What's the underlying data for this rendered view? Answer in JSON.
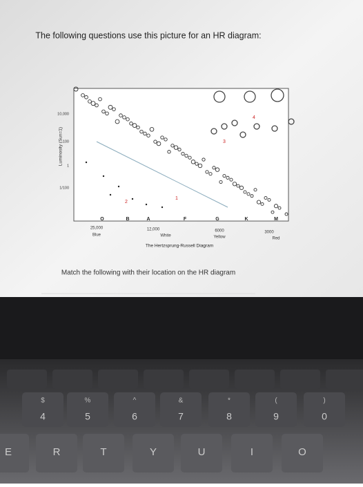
{
  "header": {
    "title": "The following questions use this picture for an HR diagram:"
  },
  "diagram": {
    "y_axis_label": "Luminosity (Sun=1)",
    "y_ticks": [
      "10,000",
      "100",
      "1",
      "1/100"
    ],
    "spectral_classes": [
      "O",
      "B",
      "A",
      "F",
      "G",
      "K",
      "M"
    ],
    "temperatures": [
      "25,000",
      "12,000",
      "6000",
      "3000"
    ],
    "colors": [
      "Blue",
      "White",
      "Yellow",
      "Red"
    ],
    "caption": "The Hertzsprung-Russell Diagram",
    "markers": [
      "1",
      "2",
      "3",
      "4"
    ]
  },
  "prompt": "Match the following with their location on the HR diagram",
  "keyboard": {
    "number_row": [
      {
        "symbol": "$",
        "digit": "4"
      },
      {
        "symbol": "%",
        "digit": "5"
      },
      {
        "symbol": "^",
        "digit": "6"
      },
      {
        "symbol": "&",
        "digit": "7"
      },
      {
        "symbol": "*",
        "digit": "8"
      },
      {
        "symbol": "(",
        "digit": "9"
      },
      {
        "symbol": ")",
        "digit": "0"
      }
    ],
    "letter_row": [
      "E",
      "R",
      "T",
      "Y",
      "U",
      "I",
      "O"
    ]
  }
}
